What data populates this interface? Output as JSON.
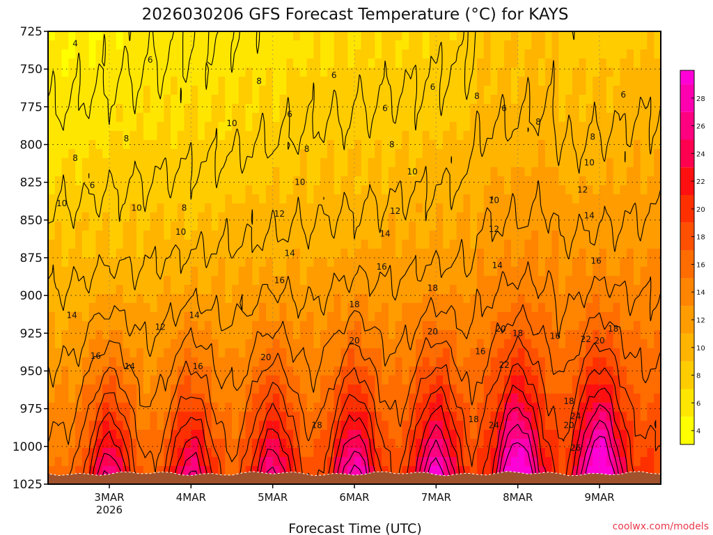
{
  "chart_data": {
    "type": "heatmap",
    "title": "2026030206 GFS Forecast Temperature (°C) for KAYS",
    "xlabel": "Forecast Time (UTC)",
    "ylabel": "",
    "y_levels": [
      "725",
      "750",
      "775",
      "800",
      "825",
      "850",
      "875",
      "900",
      "925",
      "950",
      "975",
      "1000",
      "1025"
    ],
    "x_ticks": [
      {
        "label": "3MAR",
        "sublabel": "2026",
        "t": 18
      },
      {
        "label": "4MAR",
        "sublabel": "",
        "t": 42
      },
      {
        "label": "5MAR",
        "sublabel": "",
        "t": 66
      },
      {
        "label": "6MAR",
        "sublabel": "",
        "t": 90
      },
      {
        "label": "7MAR",
        "sublabel": "",
        "t": 114
      },
      {
        "label": "8MAR",
        "sublabel": "",
        "t": 138
      },
      {
        "label": "9MAR",
        "sublabel": "",
        "t": 162
      }
    ],
    "x_range_hours": [
      0,
      180
    ],
    "y_range_hpa": [
      725,
      1025
    ],
    "colorbar": {
      "ticks": [
        "4",
        "6",
        "8",
        "10",
        "12",
        "14",
        "16",
        "18",
        "20",
        "22",
        "24",
        "26",
        "28"
      ],
      "range": [
        3,
        30
      ],
      "colors": [
        "#ffff00",
        "#ffe600",
        "#ffcc00",
        "#ffb400",
        "#ff9c00",
        "#ff8400",
        "#ff6c00",
        "#ff5000",
        "#ff3000",
        "#ff1010",
        "#ff0050",
        "#ff0080",
        "#ff00b0",
        "#ff00d8"
      ]
    },
    "contour_labels": [
      {
        "text": "4",
        "t": 8,
        "p": 733
      },
      {
        "text": "6",
        "t": 30,
        "p": 744
      },
      {
        "text": "6",
        "t": 84,
        "p": 754
      },
      {
        "text": "6",
        "t": 113,
        "p": 762
      },
      {
        "text": "6",
        "t": 99,
        "p": 776
      },
      {
        "text": "6",
        "t": 71,
        "p": 780
      },
      {
        "text": "6",
        "t": 134,
        "p": 776
      },
      {
        "text": "6",
        "t": 169,
        "p": 767
      },
      {
        "text": "8",
        "t": 62,
        "p": 758
      },
      {
        "text": "8",
        "t": 126,
        "p": 768
      },
      {
        "text": "8",
        "t": 144,
        "p": 785
      },
      {
        "text": "8",
        "t": 160,
        "p": 795
      },
      {
        "text": "8",
        "t": 23,
        "p": 796
      },
      {
        "text": "8",
        "t": 76,
        "p": 803
      },
      {
        "text": "8",
        "t": 101,
        "p": 800
      },
      {
        "text": "8",
        "t": 8,
        "p": 809
      },
      {
        "text": "8",
        "t": 40,
        "p": 842
      },
      {
        "text": "6",
        "t": 13,
        "p": 827
      },
      {
        "text": "10",
        "t": 54,
        "p": 786
      },
      {
        "text": "10",
        "t": 107,
        "p": 818
      },
      {
        "text": "10",
        "t": 74,
        "p": 825
      },
      {
        "text": "10",
        "t": 4,
        "p": 839
      },
      {
        "text": "10",
        "t": 26,
        "p": 842
      },
      {
        "text": "10",
        "t": 39,
        "p": 858
      },
      {
        "text": "10",
        "t": 131,
        "p": 837
      },
      {
        "text": "10",
        "t": 159,
        "p": 812
      },
      {
        "text": "12",
        "t": 68,
        "p": 846
      },
      {
        "text": "12",
        "t": 102,
        "p": 844
      },
      {
        "text": "12",
        "t": 131,
        "p": 856
      },
      {
        "text": "12",
        "t": 157,
        "p": 830
      },
      {
        "text": "14",
        "t": 71,
        "p": 872
      },
      {
        "text": "14",
        "t": 99,
        "p": 859
      },
      {
        "text": "14",
        "t": 132,
        "p": 880
      },
      {
        "text": "14",
        "t": 159,
        "p": 847
      },
      {
        "text": "14",
        "t": 7,
        "p": 913
      },
      {
        "text": "14",
        "t": 43,
        "p": 913
      },
      {
        "text": "14",
        "t": 24,
        "p": 947
      },
      {
        "text": "12",
        "t": 33,
        "p": 921
      },
      {
        "text": "16",
        "t": 68,
        "p": 890
      },
      {
        "text": "16",
        "t": 98,
        "p": 881
      },
      {
        "text": "16",
        "t": 161,
        "p": 877
      },
      {
        "text": "16",
        "t": 14,
        "p": 940
      },
      {
        "text": "16",
        "t": 44,
        "p": 947
      },
      {
        "text": "16",
        "t": 127,
        "p": 937
      },
      {
        "text": "16",
        "t": 149,
        "p": 927
      },
      {
        "text": "18",
        "t": 90,
        "p": 906
      },
      {
        "text": "18",
        "t": 113,
        "p": 895
      },
      {
        "text": "18",
        "t": 138,
        "p": 925
      },
      {
        "text": "18",
        "t": 166,
        "p": 922
      },
      {
        "text": "18",
        "t": 79,
        "p": 986
      },
      {
        "text": "18",
        "t": 125,
        "p": 982
      },
      {
        "text": "18",
        "t": 153,
        "p": 970
      },
      {
        "text": "20",
        "t": 64,
        "p": 941
      },
      {
        "text": "20",
        "t": 90,
        "p": 930
      },
      {
        "text": "20",
        "t": 113,
        "p": 924
      },
      {
        "text": "20",
        "t": 133,
        "p": 922
      },
      {
        "text": "20",
        "t": 162,
        "p": 930
      },
      {
        "text": "20",
        "t": 153,
        "p": 986
      },
      {
        "text": "22",
        "t": 134,
        "p": 946
      },
      {
        "text": "22",
        "t": 158,
        "p": 929
      },
      {
        "text": "24",
        "t": 131,
        "p": 986
      },
      {
        "text": "24",
        "t": 155,
        "p": 980
      },
      {
        "text": "26",
        "t": 155,
        "p": 1001
      }
    ],
    "credit": "coolwx.com/models"
  }
}
